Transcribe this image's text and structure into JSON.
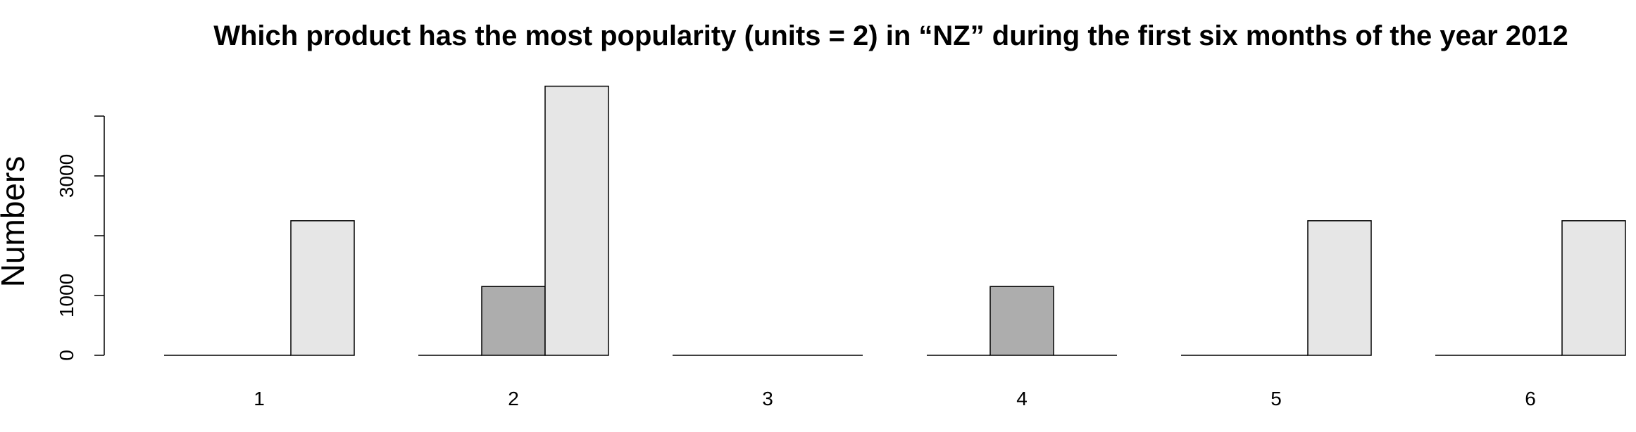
{
  "chart_data": {
    "type": "bar",
    "title": "Which product has the most popularity (units = 2) in “NZ” during the first six months of the year 2012",
    "xlabel": "",
    "ylabel": "Numbers",
    "categories": [
      "1",
      "2",
      "3",
      "4",
      "5",
      "6"
    ],
    "series": [
      {
        "values": [
          0,
          0,
          0,
          0,
          0,
          0
        ],
        "color": "#ffffff"
      },
      {
        "values": [
          0,
          1150,
          0,
          1150,
          0,
          0
        ],
        "color": "#adadad"
      },
      {
        "values": [
          2250,
          4500,
          0,
          0,
          2250,
          2250
        ],
        "color": "#e6e6e6"
      }
    ],
    "yticks": [
      0,
      1000,
      2000,
      3000,
      4000
    ],
    "ytick_labels": [
      "0",
      "1000",
      "",
      "3000",
      ""
    ],
    "ylim": [
      0,
      4500
    ],
    "grid": false,
    "legend": "none"
  }
}
